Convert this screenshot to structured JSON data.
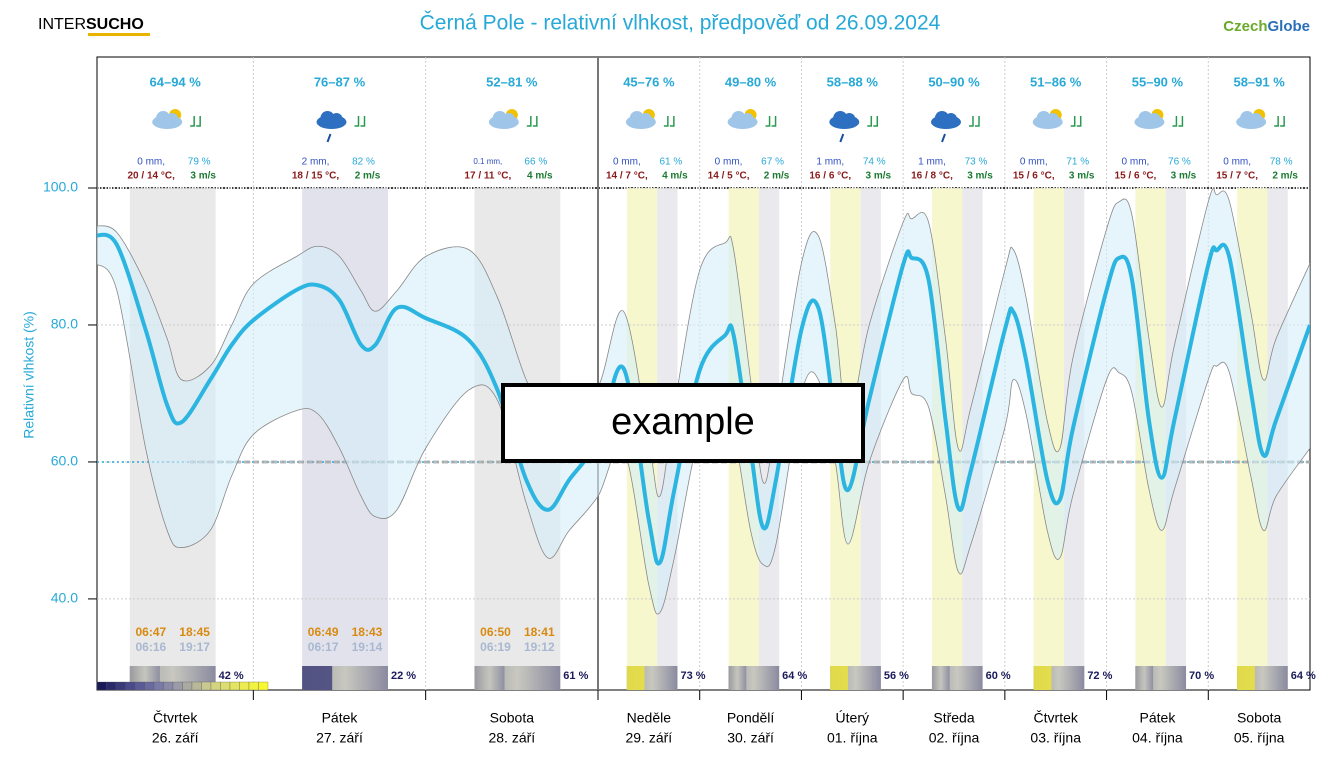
{
  "chart_data": {
    "type": "line",
    "title": "Černá Pole - relativní vlhkost, předpověď od 26.09.2024",
    "logo_left": [
      "INTER",
      "SUCHO"
    ],
    "logo_right": [
      "Czech",
      "Globe"
    ],
    "y_label": "Relativní vlhkost (%)",
    "overlay_text": "example",
    "ylim": [
      26.7,
      100
    ],
    "yticks": [
      {
        "value": 40,
        "label": "40.0"
      },
      {
        "value": 60,
        "label": "60.0"
      },
      {
        "value": 80,
        "label": "80.0"
      },
      {
        "value": 100,
        "label": "100.0"
      }
    ],
    "xlim": [
      2.2,
      240
    ],
    "threshold": 60,
    "grid": true,
    "x": [
      2,
      5,
      9,
      12,
      14,
      18,
      21,
      24,
      30,
      33,
      36,
      39,
      41,
      44,
      48,
      54,
      58,
      62,
      65,
      68,
      72,
      78,
      84,
      86.6,
      90,
      96,
      102,
      104,
      108,
      111,
      114,
      120,
      124,
      128,
      131,
      136,
      144,
      146,
      150,
      154,
      157,
      160,
      168,
      170,
      173,
      178,
      181,
      184,
      192,
      195,
      198,
      202,
      205,
      208,
      216,
      218,
      221,
      226,
      229,
      232,
      240
    ],
    "series": [
      {
        "color": "#2bb5e0",
        "values": [
          93.1,
          91.7,
          79.3,
          68.3,
          65.8,
          72,
          77.1,
          80.7,
          85.1,
          85.8,
          83.6,
          77.1,
          77.1,
          82.5,
          81.0,
          77.8,
          70.5,
          57.4,
          53.0,
          57.4,
          63.2,
          73.7,
          51.5,
          45.3,
          55.9,
          73.4,
          78.5,
          78.5,
          61.8,
          50.4,
          57.4,
          79.3,
          82.5,
          66.1,
          55.9,
          69.1,
          88.8,
          89.8,
          86.6,
          66.1,
          53.3,
          58.8,
          79.3,
          81.9,
          74.9,
          57.4,
          54.5,
          64.7,
          85.1,
          89.8,
          86.6,
          66.1,
          57.7,
          66.1,
          88.8,
          90.9,
          89.8,
          70.5,
          61.0,
          66.1,
          80.0
        ]
      },
      {
        "color": "#888888",
        "values": [
          89,
          85,
          62,
          50,
          47.5,
          50,
          58,
          64,
          67.5,
          67,
          62,
          55,
          52,
          53,
          62,
          70.5,
          69,
          54,
          46,
          50,
          55,
          62,
          42,
          38,
          46,
          64,
          68,
          65,
          50,
          45,
          48,
          70,
          72,
          60,
          48,
          60,
          72,
          70,
          68,
          55,
          44,
          48,
          65,
          72,
          67,
          50,
          46,
          55,
          72,
          73,
          70,
          56,
          50,
          56,
          72,
          74,
          73,
          58,
          50,
          55,
          62
        ]
      },
      {
        "color": "#888888",
        "values": [
          94.5,
          93.5,
          86,
          78,
          72,
          74,
          80,
          86,
          90,
          91.5,
          90,
          85,
          82,
          85,
          90,
          91,
          84,
          72,
          67,
          70,
          71,
          82,
          63,
          55,
          68,
          88,
          92,
          91,
          72,
          57,
          66,
          89,
          93,
          80,
          66,
          80,
          95,
          95.5,
          95,
          78,
          62,
          68,
          88,
          91,
          84,
          66,
          62,
          75,
          94,
          98,
          96,
          78,
          68,
          77,
          98,
          99,
          98,
          82,
          72,
          78,
          89
        ]
      }
    ],
    "days": [
      {
        "range": "64–94 %",
        "precip": "0 mm,",
        "prob": "79 %",
        "temp": "20 / 14 °C,",
        "wind": "3 m/s",
        "sunshine": "42 %",
        "weekday": "Čtvrtek",
        "date": "26. září",
        "sunrise": "06:47",
        "sunset": "18:45",
        "dawn": "06:16",
        "dusk": "19:17"
      },
      {
        "range": "76–87 %",
        "precip": "2 mm,",
        "prob": "82 %",
        "temp": "18 / 15 °C,",
        "wind": "2 m/s",
        "sunshine": "22 %",
        "weekday": "Pátek",
        "date": "27. září",
        "sunrise": "06:49",
        "sunset": "18:43",
        "dawn": "06:17",
        "dusk": "19:14"
      },
      {
        "range": "52–81 %",
        "precip": "0.1 mm,",
        "prob": "66 %",
        "temp": "17 / 11 °C,",
        "wind": "4 m/s",
        "sunshine": "61 %",
        "weekday": "Sobota",
        "date": "28. září",
        "sunrise": "06:50",
        "sunset": "18:41",
        "dawn": "06:19",
        "dusk": "19:12"
      },
      {
        "range": "45–76 %",
        "precip": "0 mm,",
        "prob": "61 %",
        "temp": "14 / 7 °C,",
        "wind": "4 m/s",
        "sunshine": "73 %",
        "weekday": "Neděle",
        "date": "29. září"
      },
      {
        "range": "49–80 %",
        "precip": "0 mm,",
        "prob": "67 %",
        "temp": "14 / 5 °C,",
        "wind": "2 m/s",
        "sunshine": "64 %",
        "weekday": "Pondělí",
        "date": "30. září"
      },
      {
        "range": "58–88 %",
        "precip": "1 mm,",
        "prob": "74 %",
        "temp": "16 / 6 °C,",
        "wind": "3 m/s",
        "sunshine": "56 %",
        "weekday": "Úterý",
        "date": "01. října"
      },
      {
        "range": "50–90 %",
        "precip": "1 mm,",
        "prob": "73 %",
        "temp": "16 / 8 °C,",
        "wind": "3 m/s",
        "sunshine": "60 %",
        "weekday": "Středa",
        "date": "02. října"
      },
      {
        "range": "51–86 %",
        "precip": "0 mm,",
        "prob": "71 %",
        "temp": "15 / 6 °C,",
        "wind": "3 m/s",
        "sunshine": "72 %",
        "weekday": "Čtvrtek",
        "date": "03. října"
      },
      {
        "range": "55–90 %",
        "precip": "0 mm,",
        "prob": "76 %",
        "temp": "15 / 6 °C,",
        "wind": "3 m/s",
        "sunshine": "70 %",
        "weekday": "Pátek",
        "date": "04. října"
      },
      {
        "range": "58–91 %",
        "precip": "0 mm,",
        "prob": "78 %",
        "temp": "15 / 7 °C,",
        "wind": "2 m/s",
        "sunshine": "64 %",
        "weekday": "Sobota",
        "date": "05. října"
      }
    ]
  }
}
